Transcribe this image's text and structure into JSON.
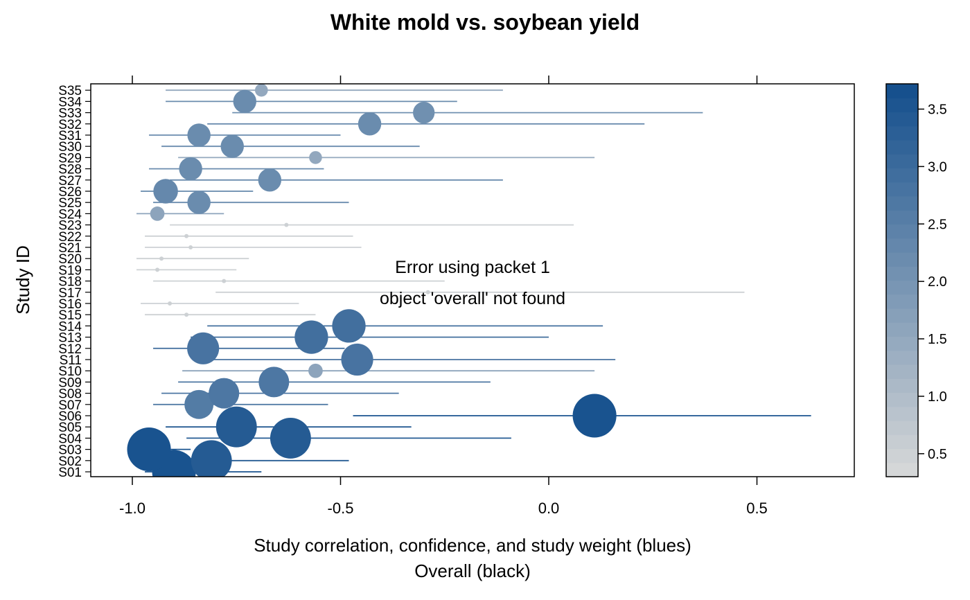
{
  "chart_data": {
    "type": "scatter",
    "title": "White mold vs. soybean yield",
    "xlabel": "Study correlation, confidence, and study weight (blues)",
    "xlabel_line2": "Overall (black)",
    "ylabel": "Study ID",
    "xlim": [
      -1.1,
      0.74
    ],
    "x_ticks": [
      -1.0,
      -0.5,
      0.0,
      0.5
    ],
    "x_tick_labels": [
      "-1.0",
      "-0.5",
      "0.0",
      "0.5"
    ],
    "error_lines": [
      "Error using packet 1",
      "object 'overall' not found"
    ],
    "colorbar": {
      "range": [
        0.3,
        3.72
      ],
      "ticks": [
        0.5,
        1.0,
        1.5,
        2.0,
        2.5,
        3.0,
        3.5
      ],
      "tick_labels": [
        "0.5",
        "1.0",
        "1.5",
        "2.0",
        "2.5",
        "3.0",
        "3.5"
      ],
      "color_low": "#d9d9d9",
      "color_high": "#124e8c"
    },
    "studies": [
      {
        "id": "S01",
        "r": -0.9,
        "lo": -0.97,
        "hi": -0.69,
        "weight": 3.6
      },
      {
        "id": "S02",
        "r": -0.81,
        "lo": -0.93,
        "hi": -0.48,
        "weight": 3.4
      },
      {
        "id": "S03",
        "r": -0.96,
        "lo": -0.99,
        "hi": -0.86,
        "weight": 3.6
      },
      {
        "id": "S04",
        "r": -0.62,
        "lo": -0.87,
        "hi": -0.09,
        "weight": 3.4
      },
      {
        "id": "S05",
        "r": -0.75,
        "lo": -0.92,
        "hi": -0.33,
        "weight": 3.4
      },
      {
        "id": "S06",
        "r": 0.11,
        "lo": -0.47,
        "hi": 0.63,
        "weight": 3.6
      },
      {
        "id": "S07",
        "r": -0.84,
        "lo": -0.95,
        "hi": -0.53,
        "weight": 2.6
      },
      {
        "id": "S08",
        "r": -0.78,
        "lo": -0.93,
        "hi": -0.36,
        "weight": 2.7
      },
      {
        "id": "S09",
        "r": -0.66,
        "lo": -0.89,
        "hi": -0.14,
        "weight": 2.7
      },
      {
        "id": "S10",
        "r": -0.56,
        "lo": -0.88,
        "hi": 0.11,
        "weight": 1.6
      },
      {
        "id": "S11",
        "r": -0.46,
        "lo": -0.81,
        "hi": 0.16,
        "weight": 2.8
      },
      {
        "id": "S12",
        "r": -0.83,
        "lo": -0.95,
        "hi": -0.49,
        "weight": 2.8
      },
      {
        "id": "S13",
        "r": -0.57,
        "lo": -0.86,
        "hi": 0.0,
        "weight": 2.9
      },
      {
        "id": "S14",
        "r": -0.48,
        "lo": -0.82,
        "hi": 0.13,
        "weight": 2.9
      },
      {
        "id": "S15",
        "r": -0.87,
        "lo": -0.97,
        "hi": -0.56,
        "weight": 0.5
      },
      {
        "id": "S16",
        "r": -0.91,
        "lo": -0.98,
        "hi": -0.6,
        "weight": 0.5
      },
      {
        "id": "S17",
        "r": -0.29,
        "lo": -0.8,
        "hi": 0.47,
        "weight": 0.5
      },
      {
        "id": "S18",
        "r": -0.78,
        "lo": -0.95,
        "hi": -0.25,
        "weight": 0.5
      },
      {
        "id": "S19",
        "r": -0.94,
        "lo": -0.99,
        "hi": -0.75,
        "weight": 0.5
      },
      {
        "id": "S20",
        "r": -0.93,
        "lo": -0.99,
        "hi": -0.72,
        "weight": 0.5
      },
      {
        "id": "S21",
        "r": -0.86,
        "lo": -0.97,
        "hi": -0.45,
        "weight": 0.5
      },
      {
        "id": "S22",
        "r": -0.87,
        "lo": -0.97,
        "hi": -0.47,
        "weight": 0.5
      },
      {
        "id": "S23",
        "r": -0.63,
        "lo": -0.91,
        "hi": 0.06,
        "weight": 0.5
      },
      {
        "id": "S24",
        "r": -0.94,
        "lo": -0.99,
        "hi": -0.78,
        "weight": 1.6
      },
      {
        "id": "S25",
        "r": -0.84,
        "lo": -0.95,
        "hi": -0.48,
        "weight": 2.2
      },
      {
        "id": "S26",
        "r": -0.92,
        "lo": -0.98,
        "hi": -0.71,
        "weight": 2.3
      },
      {
        "id": "S27",
        "r": -0.67,
        "lo": -0.91,
        "hi": -0.11,
        "weight": 2.2
      },
      {
        "id": "S28",
        "r": -0.86,
        "lo": -0.96,
        "hi": -0.54,
        "weight": 2.2
      },
      {
        "id": "S29",
        "r": -0.56,
        "lo": -0.89,
        "hi": 0.11,
        "weight": 1.5
      },
      {
        "id": "S30",
        "r": -0.76,
        "lo": -0.93,
        "hi": -0.31,
        "weight": 2.2
      },
      {
        "id": "S31",
        "r": -0.84,
        "lo": -0.96,
        "hi": -0.5,
        "weight": 2.2
      },
      {
        "id": "S32",
        "r": -0.43,
        "lo": -0.82,
        "hi": 0.23,
        "weight": 2.2
      },
      {
        "id": "S33",
        "r": -0.3,
        "lo": -0.76,
        "hi": 0.37,
        "weight": 2.1
      },
      {
        "id": "S34",
        "r": -0.73,
        "lo": -0.92,
        "hi": -0.22,
        "weight": 2.2
      },
      {
        "id": "S35",
        "r": -0.69,
        "lo": -0.92,
        "hi": -0.11,
        "weight": 1.5
      }
    ]
  }
}
